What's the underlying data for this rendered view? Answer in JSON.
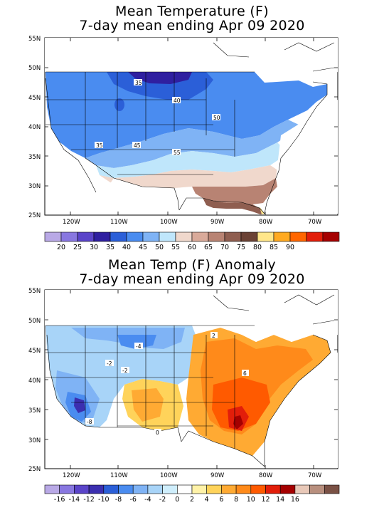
{
  "panels": [
    {
      "title_line1": "Mean Temperature (F)",
      "title_line2": "7-day mean ending Apr 09 2020",
      "lat_labels": [
        "55N",
        "50N",
        "45N",
        "40N",
        "35N",
        "30N",
        "25N"
      ],
      "lon_labels": [
        "120W",
        "110W",
        "100W",
        "90W",
        "80W",
        "70W"
      ],
      "contour_labels": [
        "35",
        "40",
        "50",
        "45",
        "35",
        "55"
      ],
      "colorbar": {
        "colors": [
          "#b9a9e6",
          "#8877e0",
          "#5a44c9",
          "#2f1fa0",
          "#2b5fd8",
          "#4a8cf0",
          "#7fb3f5",
          "#bfe6fb",
          "#f0d8cc",
          "#d9aa9a",
          "#b88373",
          "#8f5e50",
          "#6b4235",
          "#ffe68a",
          "#ffaa22",
          "#ff6600",
          "#e21e0a",
          "#a50000"
        ],
        "labels": [
          "20",
          "25",
          "30",
          "35",
          "40",
          "45",
          "50",
          "55",
          "60",
          "65",
          "70",
          "75",
          "80",
          "85",
          "90"
        ]
      }
    },
    {
      "title_line1": "Mean Temp (F) Anomaly",
      "title_line2": "7-day mean ending Apr 09 2020",
      "lat_labels": [
        "55N",
        "50N",
        "45N",
        "40N",
        "35N",
        "30N",
        "25N"
      ],
      "lon_labels": [
        "120W",
        "110W",
        "100W",
        "90W",
        "80W",
        "70W"
      ],
      "contour_labels": [
        "-4",
        "-2",
        "-2",
        "2",
        "6",
        "-8",
        "0"
      ],
      "colorbar": {
        "colors": [
          "#b9a9e6",
          "#8877e0",
          "#5a44c9",
          "#3b2fb0",
          "#2b5fd8",
          "#4a8cf0",
          "#7fb3f5",
          "#a8d4f8",
          "#cfeefc",
          "#ffffff",
          "#fff2a8",
          "#ffd35a",
          "#ffaa33",
          "#ff8a1a",
          "#ff5a00",
          "#e21e0a",
          "#a50000",
          "#e8c8b8",
          "#b88f7e",
          "#7a5145"
        ],
        "labels": [
          "-16",
          "-14",
          "-12",
          "-10",
          "-8",
          "-6",
          "-4",
          "-2",
          "0",
          "2",
          "4",
          "6",
          "8",
          "10",
          "12",
          "14",
          "16"
        ]
      }
    }
  ]
}
